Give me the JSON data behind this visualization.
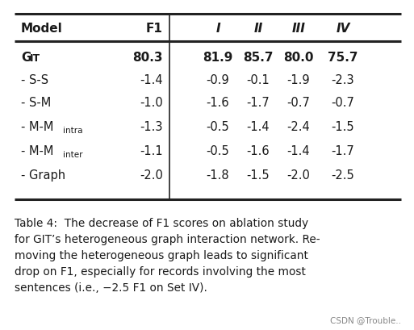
{
  "headers": [
    "Model",
    "F1",
    "I",
    "II",
    "III",
    "IV"
  ],
  "rows": [
    [
      "GIT",
      "80.3",
      "81.9",
      "85.7",
      "80.0",
      "75.7"
    ],
    [
      "- S-S",
      "-1.4",
      "-0.9",
      "-0.1",
      "-1.9",
      "-2.3"
    ],
    [
      "- S-M",
      "-1.0",
      "-1.6",
      "-1.7",
      "-0.7",
      "-0.7"
    ],
    [
      "- M-M_intra",
      "-1.3",
      "-0.5",
      "-1.4",
      "-2.4",
      "-1.5"
    ],
    [
      "- M-M_inter",
      "-1.1",
      "-0.5",
      "-1.6",
      "-1.4",
      "-1.7"
    ],
    [
      "- Graph",
      "-2.0",
      "-1.8",
      "-1.5",
      "-2.0",
      "-2.5"
    ]
  ],
  "caption_lines": [
    "Table 4:  The decrease of F1 scores on ablation study",
    "for GIT’s heterogeneous graph interaction network. Re-",
    "moving the heterogeneous graph leads to significant",
    "drop on F1, especially for records involving the most",
    "sentences (i.e., −2.5 F1 on Set IV)."
  ],
  "watermark": "CSDN @Trouble..",
  "bg_color": "#ffffff",
  "text_color": "#1a1a1a",
  "line_color": "#222222",
  "table_font_size": 10.5,
  "caption_font_size": 9.8
}
